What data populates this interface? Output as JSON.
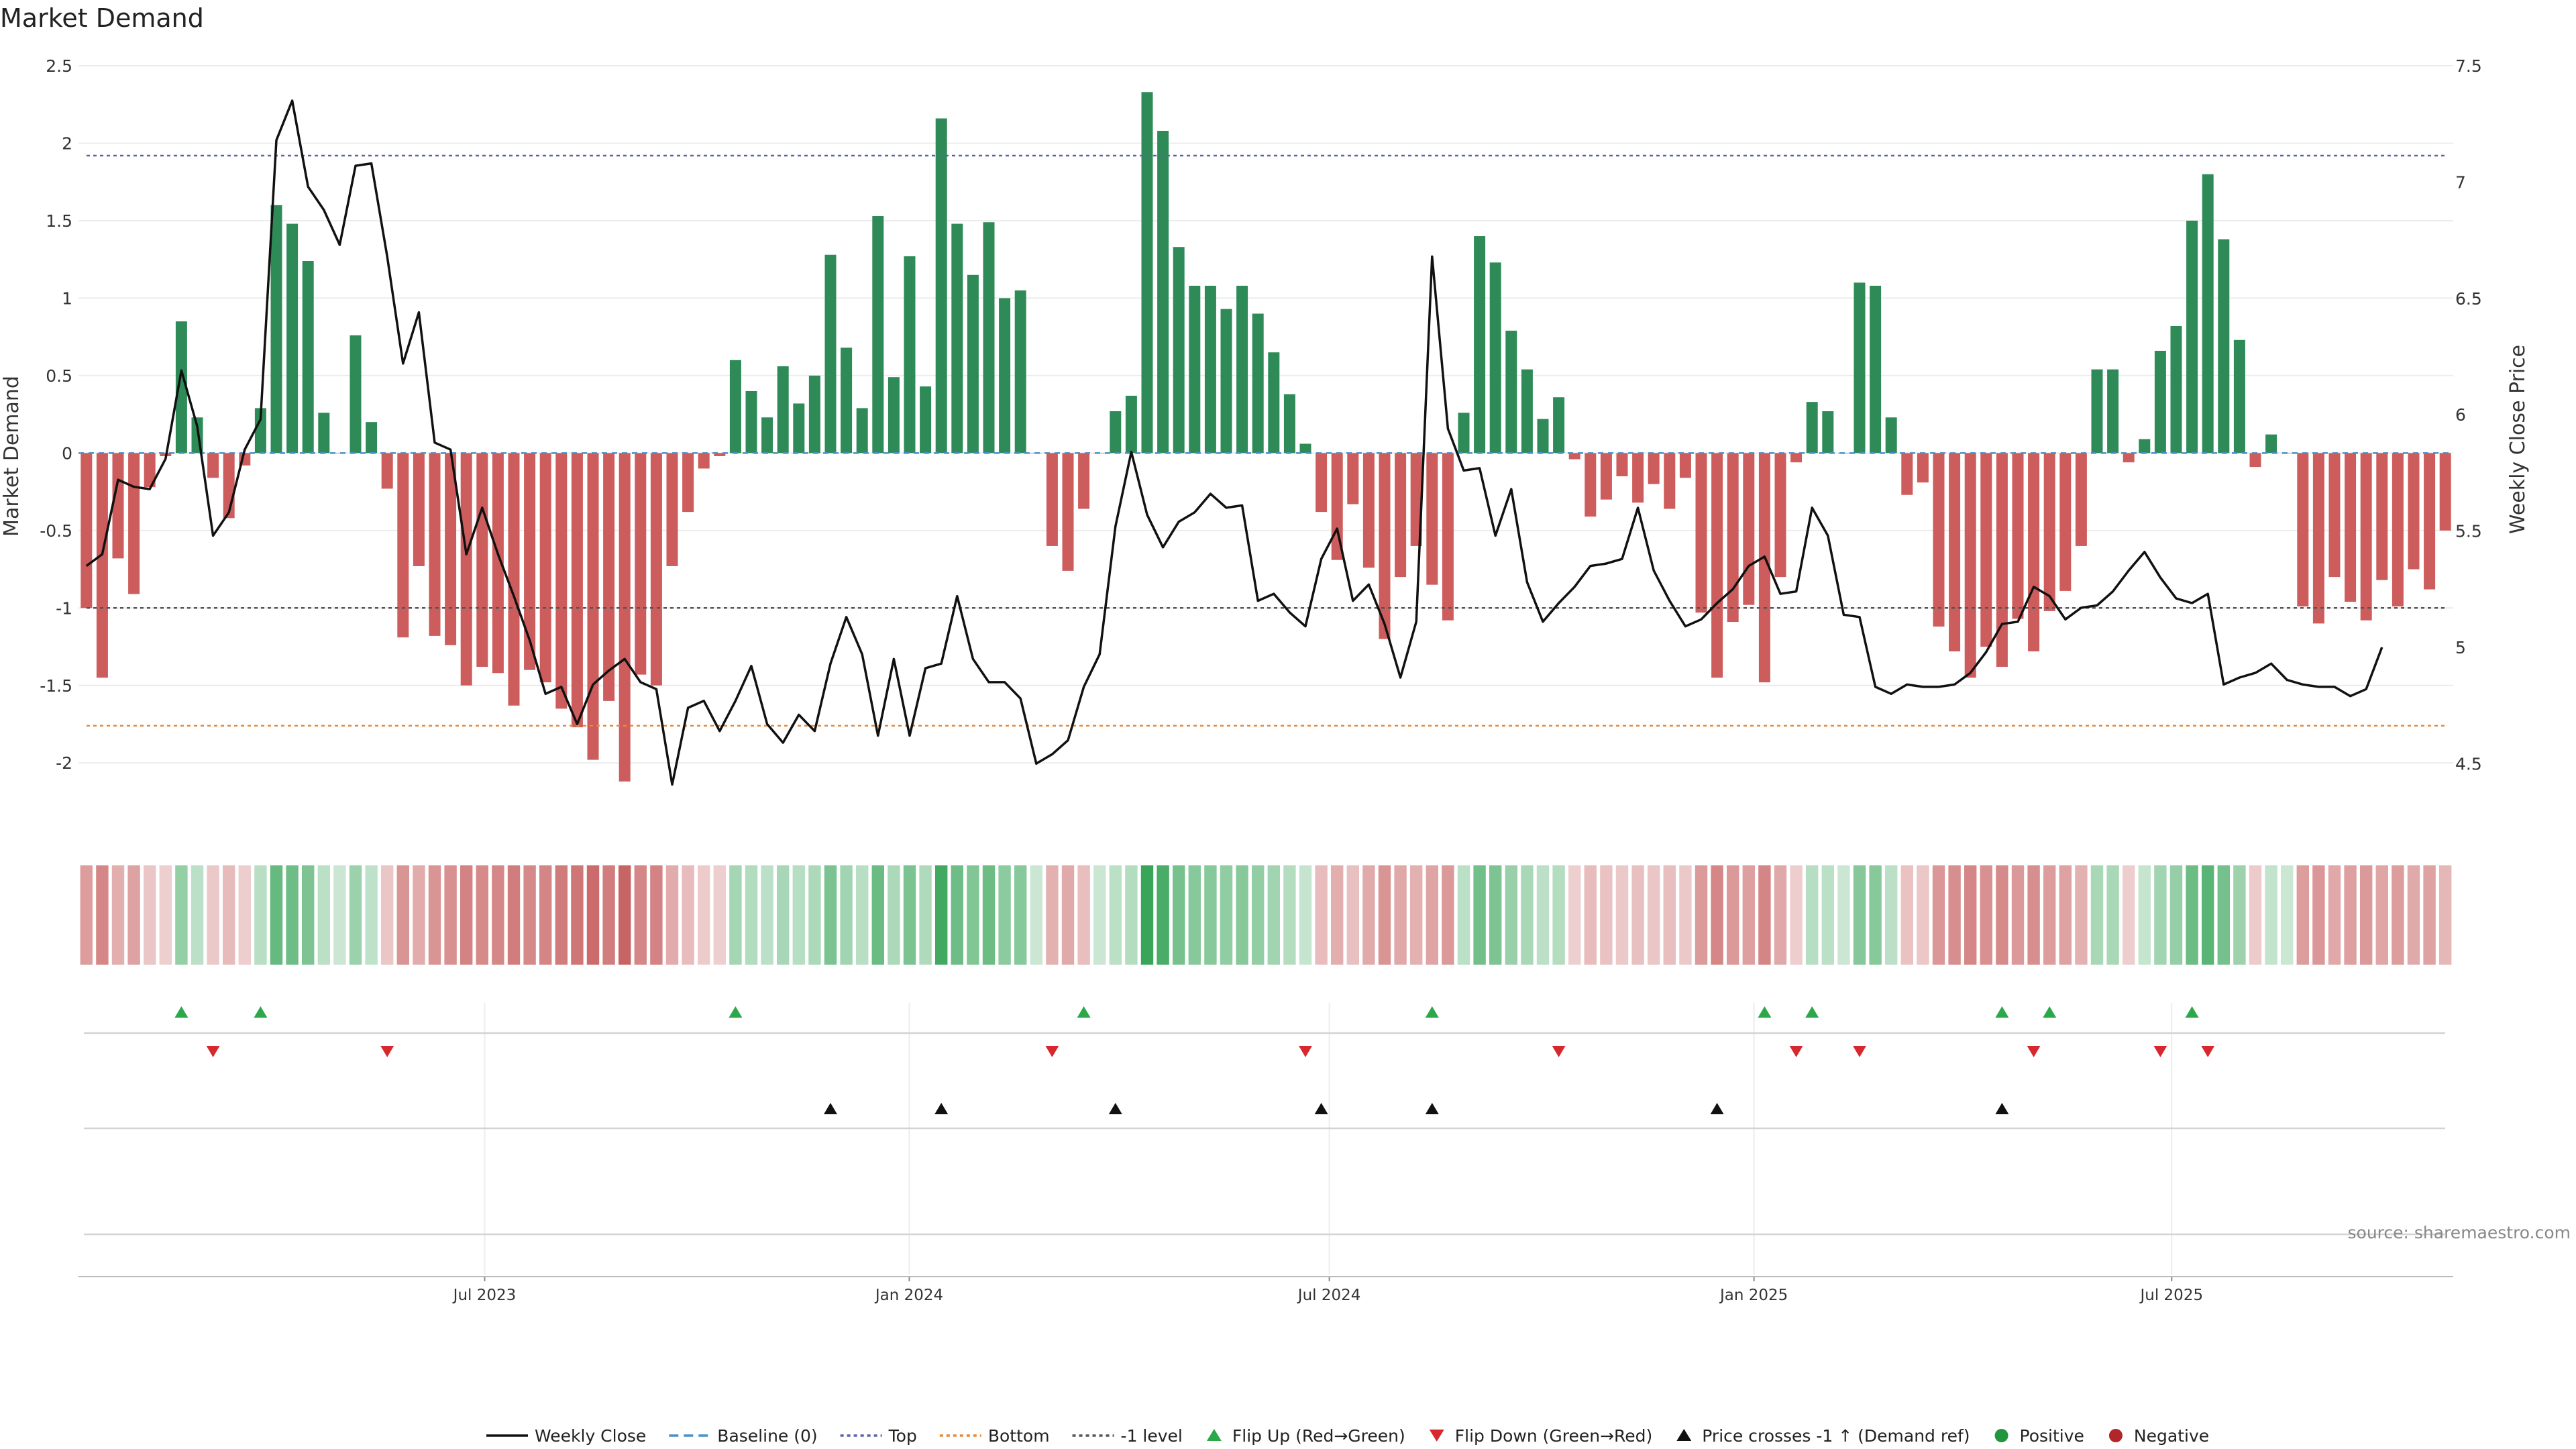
{
  "chart_data": {
    "type": "bar",
    "title": "Market Demand",
    "ylabel": "Market Demand",
    "y2label": "Weekly Close Price",
    "ylim": [
      -2.38,
      2.5
    ],
    "y2lim": [
      4.25,
      7.5
    ],
    "yticks": [
      -2,
      -1.5,
      -1,
      -0.5,
      0,
      0.5,
      1,
      1.5,
      2,
      2.5
    ],
    "y2ticks": [
      4.5,
      5,
      5.5,
      6,
      6.5,
      7,
      7.5
    ],
    "x_start": "2023-01-06",
    "x_end": "2025-10-31",
    "xticks": [
      {
        "date": "2023-07-01",
        "label": "Jul 2023"
      },
      {
        "date": "2024-01-01",
        "label": "Jan 2024"
      },
      {
        "date": "2024-07-01",
        "label": "Jul 2024"
      },
      {
        "date": "2025-01-01",
        "label": "Jan 2025"
      },
      {
        "date": "2025-07-01",
        "label": "Jul 2025"
      }
    ],
    "reference_lines": [
      {
        "name": "Top",
        "value": 1.92,
        "color": "#5a62a8"
      },
      {
        "name": "-1 level",
        "value": -1.0,
        "color": "#555555"
      },
      {
        "name": "Bottom",
        "value": -1.76,
        "color": "#e8883a"
      }
    ],
    "series": [
      {
        "name": "Market Demand",
        "values": [
          -1.0,
          -1.45,
          -0.68,
          -0.91,
          -0.22,
          -0.02,
          0.85,
          0.23,
          -0.16,
          -0.42,
          -0.08,
          0.29,
          1.6,
          1.48,
          1.24,
          0.26,
          0.0,
          0.76,
          0.2,
          -0.23,
          -1.19,
          -0.73,
          -1.18,
          -1.24,
          -1.5,
          -1.38,
          -1.42,
          -1.63,
          -1.4,
          -1.48,
          -1.65,
          -1.77,
          -1.98,
          -1.6,
          -2.12,
          -1.43,
          -1.5,
          -0.73,
          -0.38,
          -0.1,
          -0.02,
          0.6,
          0.4,
          0.23,
          0.56,
          0.32,
          0.5,
          1.28,
          0.68,
          0.29,
          1.53,
          0.49,
          1.27,
          0.43,
          2.16,
          1.48,
          1.15,
          1.49,
          1.0,
          1.05,
          0.0,
          -0.6,
          -0.76,
          -0.36,
          0.0,
          0.27,
          0.37,
          2.33,
          2.08,
          1.33,
          1.08,
          1.08,
          0.93,
          1.08,
          0.9,
          0.65,
          0.38,
          0.06,
          -0.38,
          -0.69,
          -0.33,
          -0.74,
          -1.2,
          -0.8,
          -0.6,
          -0.85,
          -1.08,
          0.26,
          1.4,
          1.23,
          0.79,
          0.54,
          0.22,
          0.36,
          -0.04,
          -0.41,
          -0.3,
          -0.15,
          -0.32,
          -0.2,
          -0.36,
          -0.16,
          -1.03,
          -1.45,
          -1.09,
          -0.98,
          -1.48,
          -0.8,
          -0.06,
          0.33,
          0.27,
          0.0,
          1.1,
          1.08,
          0.23,
          -0.27,
          -0.19,
          -1.12,
          -1.28,
          -1.45,
          -1.25,
          -1.38,
          -1.07,
          -1.28,
          -1.02,
          -0.89,
          -0.6,
          0.54,
          0.54,
          -0.06,
          0.09,
          0.66,
          0.82,
          1.5,
          1.8,
          1.38,
          0.73,
          -0.09,
          0.12,
          0.0,
          -0.99,
          -1.1,
          -0.8,
          -0.96,
          -1.08,
          -0.82,
          -0.99,
          -0.75,
          -0.88,
          -0.5
        ]
      },
      {
        "name": "Weekly Close",
        "values": [
          5.35,
          5.4,
          5.72,
          5.69,
          5.68,
          5.81,
          6.19,
          5.95,
          5.48,
          5.58,
          5.85,
          5.98,
          7.18,
          7.35,
          6.98,
          6.88,
          6.73,
          7.07,
          7.08,
          6.68,
          6.22,
          6.44,
          5.88,
          5.85,
          5.4,
          5.6,
          5.4,
          5.22,
          5.03,
          4.8,
          4.83,
          4.67,
          4.84,
          4.9,
          4.95,
          4.85,
          4.82,
          4.41,
          4.74,
          4.77,
          4.64,
          4.77,
          4.92,
          4.67,
          4.59,
          4.71,
          4.64,
          4.93,
          5.13,
          4.97,
          4.62,
          4.95,
          4.62,
          4.91,
          4.93,
          5.22,
          4.95,
          4.85,
          4.85,
          4.78,
          4.5,
          4.54,
          4.6,
          4.83,
          4.97,
          5.52,
          5.84,
          5.57,
          5.43,
          5.54,
          5.58,
          5.66,
          5.6,
          5.61,
          5.2,
          5.23,
          5.15,
          5.09,
          5.38,
          5.51,
          5.2,
          5.27,
          5.1,
          4.87,
          5.11,
          6.68,
          5.94,
          5.76,
          5.77,
          5.48,
          5.68,
          5.28,
          5.11,
          5.19,
          5.26,
          5.35,
          5.36,
          5.38,
          5.6,
          5.33,
          5.2,
          5.09,
          5.12,
          5.19,
          5.25,
          5.35,
          5.39,
          5.23,
          5.24,
          5.6,
          5.48,
          5.14,
          5.13,
          4.83,
          4.8,
          4.84,
          4.83,
          4.83,
          4.84,
          4.89,
          4.98,
          5.1,
          5.11,
          5.26,
          5.22,
          5.12,
          5.17,
          5.18,
          5.24,
          5.33,
          5.41,
          5.3,
          5.21,
          5.19,
          5.23,
          4.84,
          4.87,
          4.89,
          4.93,
          4.86,
          4.84,
          4.83,
          4.83,
          4.79,
          4.82,
          5.0
        ]
      }
    ],
    "heat_strip": {
      "name": "Demand intensity",
      "note": "one cell per week, colour follows demand sign and magnitude"
    },
    "markers": {
      "flip_up_weeks": [
        6,
        11,
        41,
        63,
        85,
        106,
        109,
        121,
        124,
        133
      ],
      "flip_down_weeks": [
        8,
        19,
        61,
        77,
        93,
        108,
        112,
        123,
        131,
        134
      ],
      "price_cross_weeks": [
        47,
        54,
        65,
        78,
        85,
        103,
        121
      ]
    },
    "colors": {
      "positive": "#2e8b57",
      "negative": "#cd5c5c",
      "line": "#111111",
      "flip_up": "#2ca84a",
      "flip_down": "#d6282e",
      "cross": "#111111",
      "positive_dot": "#22963c",
      "negative_dot": "#b22529"
    },
    "legend": {
      "placement": "bottom-center",
      "items": [
        {
          "label": "Weekly Close",
          "symbol": "solid-line",
          "color": "#111111"
        },
        {
          "label": "Baseline (0)",
          "symbol": "dashed-line",
          "color": "#4a90c8"
        },
        {
          "label": "Top",
          "symbol": "dotted-line",
          "color": "#5a62a8"
        },
        {
          "label": "Bottom",
          "symbol": "dotted-line",
          "color": "#e8883a"
        },
        {
          "label": "-1 level",
          "symbol": "dotted-line",
          "color": "#555555"
        },
        {
          "label": "Flip Up (Red→Green)",
          "symbol": "triangle-up",
          "color": "#2ca84a"
        },
        {
          "label": "Flip Down (Green→Red)",
          "symbol": "triangle-down",
          "color": "#d6282e"
        },
        {
          "label": "Price crosses -1 ↑ (Demand ref)",
          "symbol": "triangle-up",
          "color": "#111111"
        },
        {
          "label": "Positive",
          "symbol": "dot",
          "color": "#22963c"
        },
        {
          "label": "Negative",
          "symbol": "dot",
          "color": "#b22529"
        }
      ]
    },
    "source": "source: sharemaestro.com"
  }
}
